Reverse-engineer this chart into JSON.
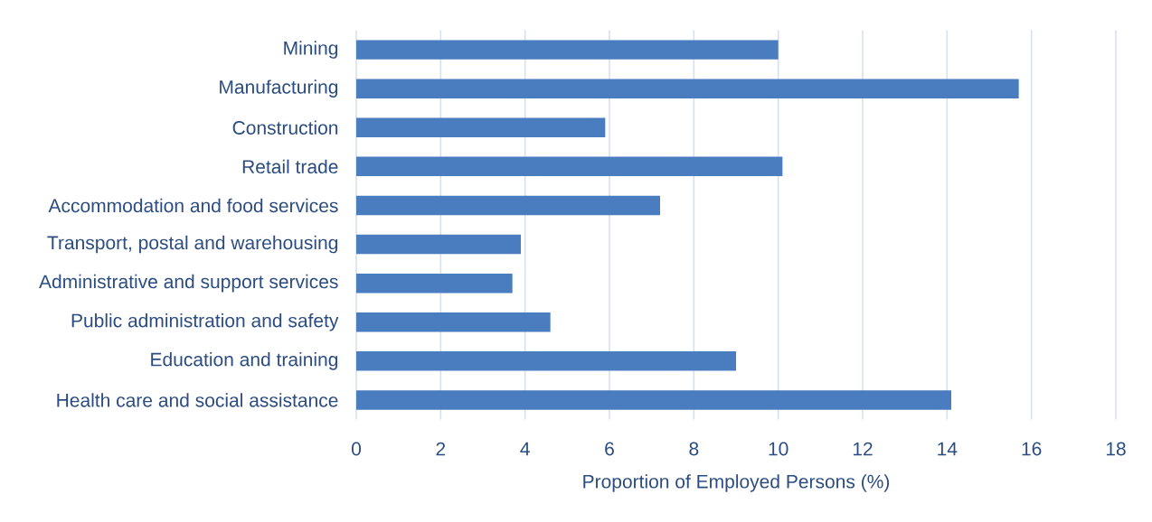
{
  "chart_data": {
    "type": "bar",
    "orientation": "horizontal",
    "categories": [
      "Mining",
      "Manufacturing",
      "Construction",
      "Retail trade",
      "Accommodation and food services",
      "Transport, postal and warehousing",
      "Administrative and support services",
      "Public administration and safety",
      "Education and training",
      "Health care and social assistance"
    ],
    "values": [
      10.0,
      15.7,
      5.9,
      10.1,
      7.2,
      3.9,
      3.7,
      4.6,
      9.0,
      14.1
    ],
    "color": "#4a7dbf",
    "xlabel": "Proportion of Employed Persons (%)",
    "xlim": [
      0,
      18
    ],
    "xticks": [
      0,
      2,
      4,
      6,
      8,
      10,
      12,
      14,
      16,
      18
    ],
    "grid": "x"
  }
}
